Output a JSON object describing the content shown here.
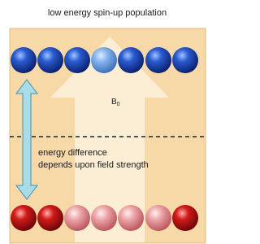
{
  "title": "low energy spin-up population",
  "field_label": {
    "symbol": "B",
    "subscript": "0"
  },
  "annotation": {
    "lines": [
      "energy difference",
      "depends upon field strength"
    ]
  }
}
